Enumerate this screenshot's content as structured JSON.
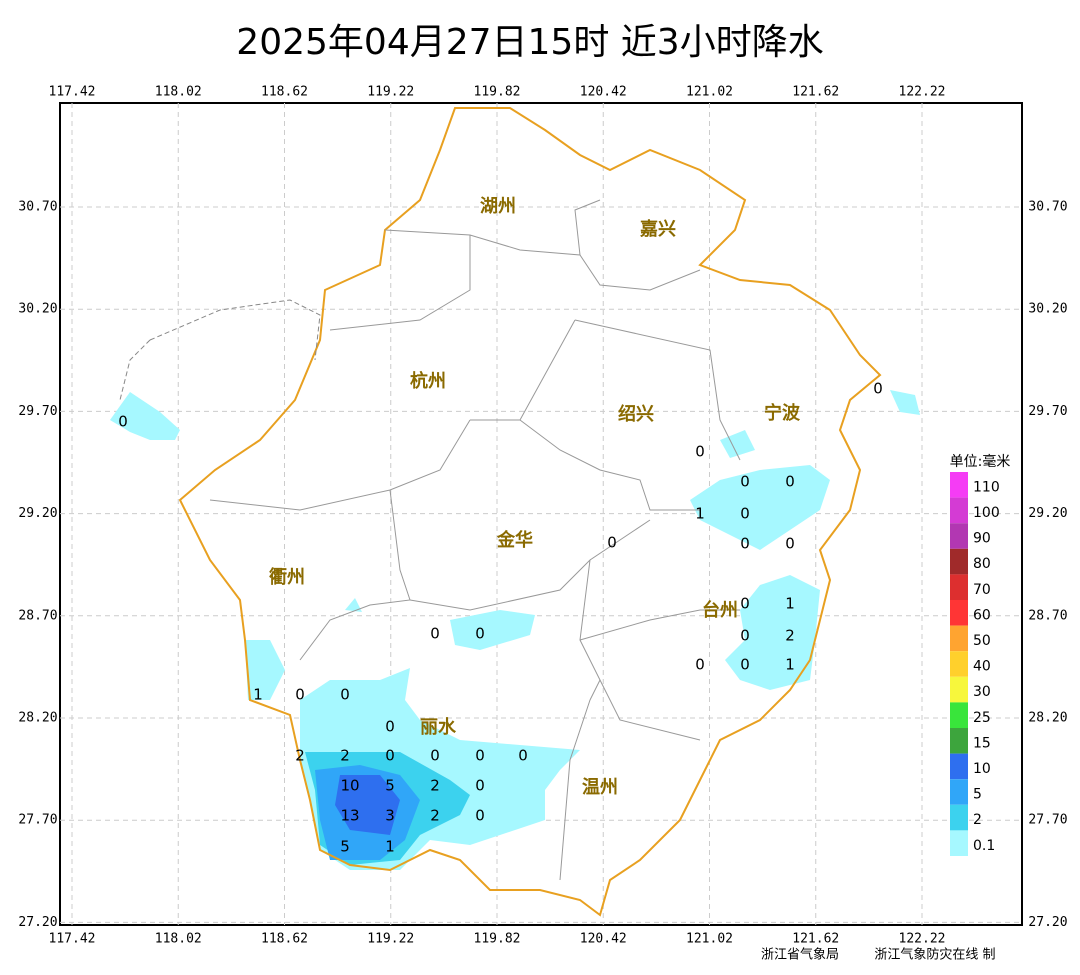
{
  "title": "2025年04月27日15时  近3小时降水",
  "lon_ticks": [
    "117.42",
    "118.02",
    "118.62",
    "119.22",
    "119.82",
    "120.42",
    "121.02",
    "121.62",
    "122.22"
  ],
  "lat_ticks": [
    "30.70",
    "30.20",
    "29.70",
    "29.20",
    "28.70",
    "28.20",
    "27.70",
    "27.20"
  ],
  "cities": [
    "湖州",
    "嘉兴",
    "杭州",
    "绍兴",
    "宁波",
    "金华",
    "衢州",
    "台州",
    "丽水",
    "温州"
  ],
  "stations": [
    0,
    0,
    0,
    0,
    1,
    0,
    0,
    0,
    0,
    0,
    1,
    0,
    0,
    0,
    2,
    0,
    0,
    1,
    1,
    0,
    0,
    0,
    2,
    2,
    0,
    0,
    0,
    0,
    10,
    5,
    2,
    0,
    13,
    3,
    2,
    0,
    5,
    1,
    0
  ],
  "legend": {
    "unit": "单位:毫米",
    "items": [
      {
        "label": "110",
        "color": "#f53cf5"
      },
      {
        "label": "100",
        "color": "#d43bd4"
      },
      {
        "label": "90",
        "color": "#b237b2"
      },
      {
        "label": "80",
        "color": "#a02a2a"
      },
      {
        "label": "70",
        "color": "#dd2f2f"
      },
      {
        "label": "60",
        "color": "#ff3535"
      },
      {
        "label": "50",
        "color": "#ffa430"
      },
      {
        "label": "40",
        "color": "#ffd02c"
      },
      {
        "label": "30",
        "color": "#f7f73c"
      },
      {
        "label": "25",
        "color": "#39e53b"
      },
      {
        "label": "15",
        "color": "#3da53d"
      },
      {
        "label": "10",
        "color": "#2e6fef"
      },
      {
        "label": "5",
        "color": "#30a6f8"
      },
      {
        "label": "2",
        "color": "#3cd2ee"
      },
      {
        "label": "0.1",
        "color": "#a6f8ff"
      }
    ]
  },
  "footer": {
    "agency": "浙江省气象局",
    "site": "浙江气象防灾在线 制"
  }
}
